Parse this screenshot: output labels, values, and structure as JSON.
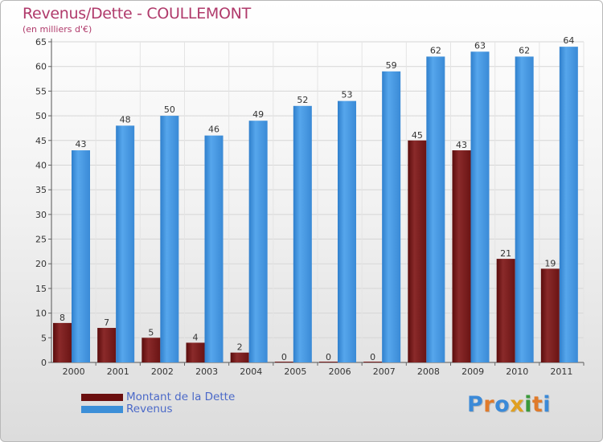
{
  "header": {
    "title": "Revenus/Dette - COULLEMONT",
    "subtitle": "(en milliers d'€)"
  },
  "chart_data": {
    "type": "bar",
    "categories": [
      "2000",
      "2001",
      "2002",
      "2003",
      "2004",
      "2005",
      "2006",
      "2007",
      "2008",
      "2009",
      "2010",
      "2011"
    ],
    "series": [
      {
        "name": "Montant de la Dette",
        "color": "#7a1c1c",
        "values": [
          8,
          7,
          5,
          4,
          2,
          0,
          0,
          0,
          45,
          43,
          21,
          19
        ]
      },
      {
        "name": "Revenus",
        "color": "#3c8fd8",
        "values": [
          43,
          48,
          50,
          46,
          49,
          52,
          53,
          59,
          62,
          63,
          62,
          64
        ]
      }
    ],
    "ylim": [
      0,
      65
    ],
    "yticks": [
      0,
      5,
      10,
      15,
      20,
      25,
      30,
      35,
      40,
      45,
      50,
      55,
      60,
      65
    ],
    "title": "Revenus/Dette - COULLEMONT",
    "ylabel": "(en milliers d'€)",
    "xlabel": "",
    "grid": true,
    "legend": "bottom-left"
  },
  "legend": {
    "items": [
      {
        "label": "Montant de la Dette",
        "color": "#6b0f0f"
      },
      {
        "label": "Revenus",
        "color": "#3c8fd8"
      }
    ]
  },
  "brand": {
    "letters": [
      "P",
      "r",
      "o",
      "x",
      "i",
      "t",
      "i"
    ],
    "colors": [
      "#3b8ad8",
      "#e07a2a",
      "#3b8ad8",
      "#e0a020",
      "#3a9a3a",
      "#e07a2a",
      "#3b8ad8"
    ]
  }
}
